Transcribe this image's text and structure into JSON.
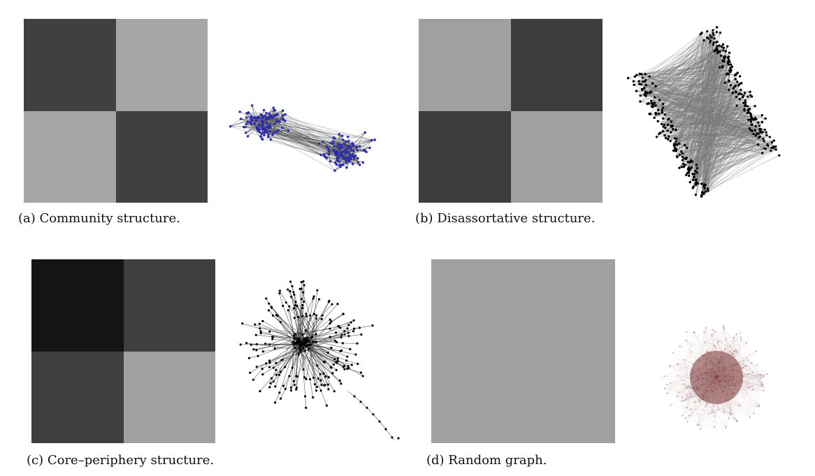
{
  "panels": {
    "a": {
      "caption": "(a) Community structure.",
      "block_shades": [
        "#404040",
        "#a6a6a6",
        "#a6a6a6",
        "#404040"
      ],
      "node_color": "#2b2bb0",
      "edge_color": "#555555"
    },
    "b": {
      "caption": "(b) Disassortative structure.",
      "block_shades": [
        "#a0a0a0",
        "#3d3d3d",
        "#3d3d3d",
        "#a0a0a0"
      ],
      "node_color": "#000000",
      "edge_color": "#7a7a7a"
    },
    "c": {
      "caption": "(c) Core–periphery structure.",
      "block_shades": [
        "#141414",
        "#3f3f3f",
        "#3f3f3f",
        "#a0a0a0"
      ],
      "node_color": "#000000",
      "edge_color": "#333333"
    },
    "d": {
      "caption": "(d) Random graph.",
      "block_shades": [
        "#a0a0a0",
        "#a0a0a0",
        "#a0a0a0",
        "#a0a0a0"
      ],
      "node_color": "#7a3535",
      "edge_color": "#8a5a5a"
    }
  }
}
